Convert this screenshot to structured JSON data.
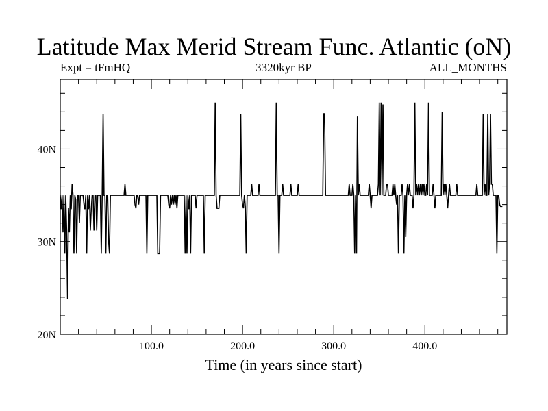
{
  "chart_data": {
    "type": "line",
    "title": "Latitude Max Merid Stream Func. Atlantic (oN)",
    "subtitle_left": "Expt = tFmHQ",
    "subtitle_center": "3320kyr BP",
    "subtitle_right": "ALL_MONTHS",
    "xlabel": "Time (in years since start)",
    "ylabel": "",
    "xlim": [
      0,
      490
    ],
    "ylim": [
      20,
      47.5
    ],
    "x_ticks": [
      {
        "value": 100,
        "label": "100.0"
      },
      {
        "value": 200,
        "label": "200.0"
      },
      {
        "value": 300,
        "label": "300.0"
      },
      {
        "value": 400,
        "label": "400.0"
      }
    ],
    "y_ticks": [
      {
        "value": 20,
        "label": "20N"
      },
      {
        "value": 30,
        "label": "30N"
      },
      {
        "value": 40,
        "label": "40N"
      }
    ],
    "grid": false,
    "series": [
      {
        "name": "",
        "points": [
          [
            0,
            35
          ],
          [
            1,
            33.5
          ],
          [
            2,
            35
          ],
          [
            3,
            31
          ],
          [
            4,
            35
          ],
          [
            5,
            28.7
          ],
          [
            6,
            35
          ],
          [
            7,
            31.2
          ],
          [
            8,
            23.8
          ],
          [
            9,
            33.6
          ],
          [
            10,
            31
          ],
          [
            11,
            35
          ],
          [
            12,
            33.5
          ],
          [
            13,
            36.2
          ],
          [
            14,
            35
          ],
          [
            15,
            28.7
          ],
          [
            16,
            35
          ],
          [
            17,
            34.5
          ],
          [
            18,
            28.7
          ],
          [
            19,
            35
          ],
          [
            20,
            35
          ],
          [
            21,
            32
          ],
          [
            22,
            35
          ],
          [
            23,
            35
          ],
          [
            24,
            35
          ],
          [
            25,
            35
          ],
          [
            26,
            34
          ],
          [
            27,
            33.5
          ],
          [
            28,
            35
          ],
          [
            29,
            28.7
          ],
          [
            30,
            35
          ],
          [
            31,
            33.5
          ],
          [
            32,
            35
          ],
          [
            33,
            31.2
          ],
          [
            34,
            33.5
          ],
          [
            35,
            35
          ],
          [
            36,
            35
          ],
          [
            37,
            31.2
          ],
          [
            38,
            35
          ],
          [
            39,
            35
          ],
          [
            40,
            31.2
          ],
          [
            41,
            35
          ],
          [
            42,
            35
          ],
          [
            43,
            35
          ],
          [
            44,
            35
          ],
          [
            45,
            28.7
          ],
          [
            46,
            35
          ],
          [
            47,
            43.8
          ],
          [
            48,
            35
          ],
          [
            49,
            35
          ],
          [
            50,
            28.7
          ],
          [
            51,
            35
          ],
          [
            52,
            35
          ],
          [
            53,
            30.1
          ],
          [
            54,
            28.7
          ],
          [
            55,
            35
          ],
          [
            56,
            35
          ],
          [
            56.5,
            35
          ],
          [
            57,
            35
          ],
          [
            70,
            35
          ],
          [
            71,
            36.2
          ],
          [
            72,
            35
          ],
          [
            81,
            35
          ],
          [
            82,
            34
          ],
          [
            83,
            33.6
          ],
          [
            84,
            35
          ],
          [
            85,
            35
          ],
          [
            86,
            34
          ],
          [
            87,
            35
          ],
          [
            94,
            35
          ],
          [
            95,
            28.7
          ],
          [
            96,
            35
          ],
          [
            105,
            35
          ],
          [
            106,
            35
          ],
          [
            107,
            28.7
          ],
          [
            108,
            28.7
          ],
          [
            109,
            28.7
          ],
          [
            110,
            35
          ],
          [
            118,
            35
          ],
          [
            119,
            34
          ],
          [
            120,
            33.6
          ],
          [
            121,
            35
          ],
          [
            122,
            34
          ],
          [
            123,
            35
          ],
          [
            124,
            34
          ],
          [
            125,
            35
          ],
          [
            126,
            34
          ],
          [
            127,
            35
          ],
          [
            128,
            33.6
          ],
          [
            129,
            35
          ],
          [
            136,
            35
          ],
          [
            137,
            28.7
          ],
          [
            138,
            35
          ],
          [
            139,
            28.7
          ],
          [
            140,
            35
          ],
          [
            141,
            33.5
          ],
          [
            142,
            35
          ],
          [
            143,
            28.7
          ],
          [
            144,
            35
          ],
          [
            145,
            35
          ],
          [
            148,
            35
          ],
          [
            149,
            33.6
          ],
          [
            150,
            35
          ],
          [
            157,
            35
          ],
          [
            158,
            28.7
          ],
          [
            159,
            35
          ],
          [
            168,
            35
          ],
          [
            169,
            35
          ],
          [
            170,
            45
          ],
          [
            171,
            35
          ],
          [
            172,
            33.6
          ],
          [
            173,
            33.6
          ],
          [
            174,
            33.6
          ],
          [
            175,
            35
          ],
          [
            197,
            35
          ],
          [
            198,
            43.8
          ],
          [
            199,
            35
          ],
          [
            200,
            34
          ],
          [
            201,
            33.6
          ],
          [
            202,
            35
          ],
          [
            203,
            33.8
          ],
          [
            204,
            28.7
          ],
          [
            205,
            35
          ],
          [
            209,
            35
          ],
          [
            210,
            36.2
          ],
          [
            211,
            35
          ],
          [
            217,
            35
          ],
          [
            218,
            36.2
          ],
          [
            219,
            35
          ],
          [
            236,
            35
          ],
          [
            237,
            45
          ],
          [
            238,
            35
          ],
          [
            239,
            35
          ],
          [
            240,
            28.7
          ],
          [
            241,
            35
          ],
          [
            243,
            35
          ],
          [
            244,
            36.2
          ],
          [
            245,
            35
          ],
          [
            252,
            35
          ],
          [
            253,
            36.2
          ],
          [
            254,
            35
          ],
          [
            260,
            35
          ],
          [
            261,
            36.2
          ],
          [
            262,
            35
          ],
          [
            288,
            35
          ],
          [
            289,
            43.8
          ],
          [
            290,
            43.8
          ],
          [
            291,
            35
          ],
          [
            316,
            35
          ],
          [
            317,
            36.2
          ],
          [
            318,
            35
          ],
          [
            320,
            35
          ],
          [
            321,
            36.2
          ],
          [
            322,
            35
          ],
          [
            323,
            28.7
          ],
          [
            324,
            35
          ],
          [
            325,
            28.7
          ],
          [
            326,
            43.5
          ],
          [
            327,
            35
          ],
          [
            328,
            36.2
          ],
          [
            329,
            35
          ],
          [
            338,
            35
          ],
          [
            339,
            36.2
          ],
          [
            340,
            35
          ],
          [
            341,
            33.6
          ],
          [
            342,
            35
          ],
          [
            348,
            35
          ],
          [
            349,
            36.2
          ],
          [
            350,
            45
          ],
          [
            351,
            35
          ],
          [
            352,
            45
          ],
          [
            353,
            35
          ],
          [
            354,
            44.8
          ],
          [
            355,
            35
          ],
          [
            357,
            35
          ],
          [
            358,
            36.2
          ],
          [
            359,
            36.2
          ],
          [
            360,
            35
          ],
          [
            364,
            35
          ],
          [
            365,
            36.2
          ],
          [
            366,
            35
          ],
          [
            367,
            36.2
          ],
          [
            368,
            35
          ],
          [
            369,
            34
          ],
          [
            370,
            35
          ],
          [
            371,
            28.7
          ],
          [
            372,
            35
          ],
          [
            374,
            35
          ],
          [
            375,
            36.2
          ],
          [
            376,
            35
          ],
          [
            377,
            28.7
          ],
          [
            378,
            35
          ],
          [
            379,
            30.5
          ],
          [
            380,
            35
          ],
          [
            381,
            36.2
          ],
          [
            382,
            35
          ],
          [
            383,
            36.2
          ],
          [
            384,
            35
          ],
          [
            385,
            35
          ],
          [
            386,
            35
          ],
          [
            387,
            33.6
          ],
          [
            388,
            35
          ],
          [
            389,
            45
          ],
          [
            390,
            35
          ],
          [
            391,
            36.2
          ],
          [
            392,
            35
          ],
          [
            393,
            36.2
          ],
          [
            394,
            35
          ],
          [
            395,
            36.2
          ],
          [
            396,
            35
          ],
          [
            397,
            36.2
          ],
          [
            398,
            35
          ],
          [
            399,
            36.2
          ],
          [
            400,
            35
          ],
          [
            401,
            35
          ],
          [
            402,
            36.2
          ],
          [
            403,
            35
          ],
          [
            404,
            45
          ],
          [
            405,
            35
          ],
          [
            408,
            35
          ],
          [
            409,
            36.2
          ],
          [
            410,
            35
          ],
          [
            411,
            33.6
          ],
          [
            412,
            35
          ],
          [
            418,
            35
          ],
          [
            419,
            44
          ],
          [
            420,
            35
          ],
          [
            421,
            36.2
          ],
          [
            422,
            35
          ],
          [
            423,
            36.2
          ],
          [
            424,
            35
          ],
          [
            425,
            33.6
          ],
          [
            426,
            35
          ],
          [
            427,
            36.2
          ],
          [
            428,
            35
          ],
          [
            433,
            35
          ],
          [
            434,
            35
          ],
          [
            435,
            36.2
          ],
          [
            436,
            35
          ],
          [
            456,
            35
          ],
          [
            457,
            36.2
          ],
          [
            458,
            35
          ],
          [
            463,
            35
          ],
          [
            464,
            43.8
          ],
          [
            465,
            35
          ],
          [
            466,
            36.2
          ],
          [
            467,
            35
          ],
          [
            468,
            35
          ],
          [
            469,
            43.8
          ],
          [
            470,
            35
          ],
          [
            471,
            36.2
          ],
          [
            472,
            43.8
          ],
          [
            473,
            36.2
          ],
          [
            474,
            36.2
          ],
          [
            475,
            35
          ],
          [
            476,
            35
          ],
          [
            477,
            35
          ],
          [
            478,
            35
          ],
          [
            479,
            28.7
          ],
          [
            480,
            35
          ],
          [
            481,
            35
          ],
          [
            482,
            34
          ],
          [
            483,
            33.8
          ],
          [
            484,
            33.8
          ],
          [
            485,
            33.8
          ]
        ]
      }
    ]
  }
}
